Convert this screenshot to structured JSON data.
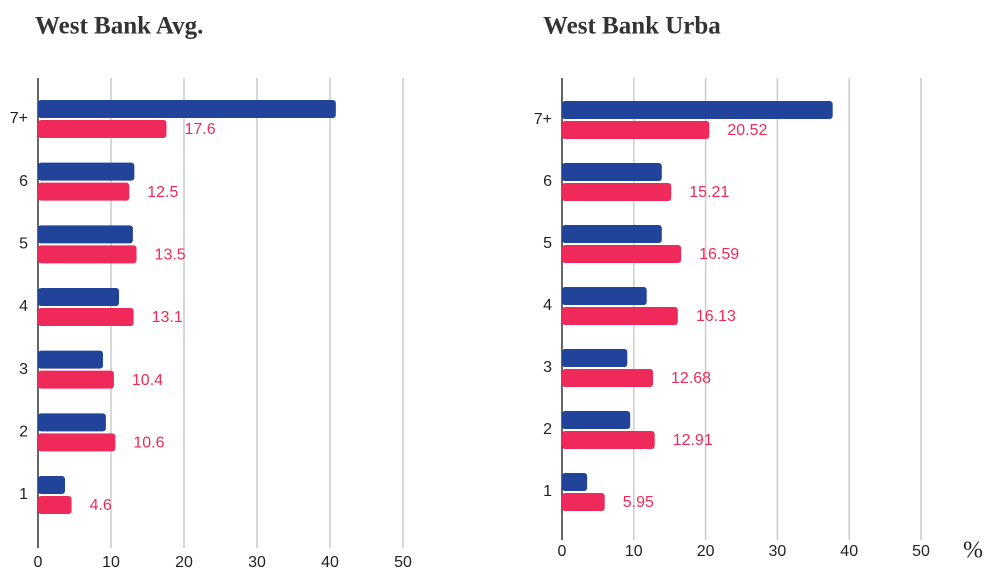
{
  "chart_data": [
    {
      "type": "bar",
      "orientation": "horizontal",
      "title": "West Bank Avg.",
      "categories": [
        "1",
        "2",
        "3",
        "4",
        "5",
        "6",
        "7+"
      ],
      "series": [
        {
          "color": "#21449a",
          "values": [
            3.7,
            9.3,
            8.9,
            11.1,
            13.0,
            13.2,
            40.8
          ]
        },
        {
          "color": "#ef2a5b",
          "values": [
            4.6,
            10.6,
            10.4,
            13.1,
            13.5,
            12.5,
            17.6
          ]
        }
      ],
      "label_series": 1,
      "xlim": [
        0,
        50
      ],
      "xticks": [
        0,
        10,
        20,
        30,
        40,
        50
      ],
      "grid": true
    },
    {
      "type": "bar",
      "orientation": "horizontal",
      "title": "West Bank Urba",
      "categories": [
        "1",
        "2",
        "3",
        "4",
        "5",
        "6",
        "7+"
      ],
      "series": [
        {
          "color": "#21449a",
          "values": [
            3.5,
            9.5,
            9.1,
            11.8,
            13.9,
            13.9,
            37.7
          ]
        },
        {
          "color": "#ef2a5b",
          "values": [
            5.95,
            12.91,
            12.68,
            16.13,
            16.59,
            15.21,
            20.52
          ]
        }
      ],
      "label_series": 1,
      "xlim": [
        0,
        50
      ],
      "xticks": [
        0,
        10,
        20,
        30,
        40,
        50
      ],
      "grid": true,
      "xlabel": "%"
    }
  ]
}
